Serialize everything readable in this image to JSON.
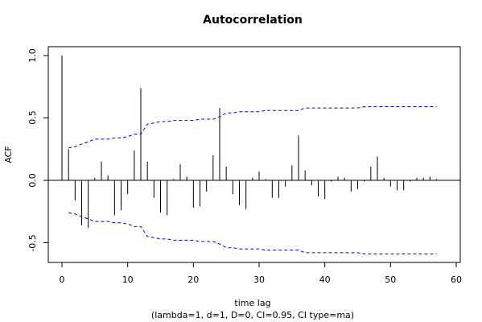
{
  "chart_data": {
    "type": "bar",
    "title": "Autocorrelation",
    "xlabel": "time lag",
    "subtitle": "(lambda=1, d=1, D=0, CI=0.95, CI type=ma)",
    "ylabel": "ACF",
    "xlim": [
      0,
      60
    ],
    "ylim": [
      -0.6,
      1.0
    ],
    "x_ticks": [
      0,
      10,
      20,
      30,
      40,
      50,
      60
    ],
    "y_ticks": [
      -0.5,
      0.0,
      0.5,
      1.0
    ],
    "x_tick_labels": [
      "0",
      "10",
      "20",
      "30",
      "40",
      "50",
      "60"
    ],
    "y_tick_labels": [
      "-0.5",
      "0.0",
      "0.5",
      "1.0"
    ],
    "zero_line": true,
    "lags": [
      0,
      1,
      2,
      3,
      4,
      5,
      6,
      7,
      8,
      9,
      10,
      11,
      12,
      13,
      14,
      15,
      16,
      17,
      18,
      19,
      20,
      21,
      22,
      23,
      24,
      25,
      26,
      27,
      28,
      29,
      30,
      31,
      32,
      33,
      34,
      35,
      36,
      37,
      38,
      39,
      40,
      41,
      42,
      43,
      44,
      45,
      46,
      47,
      48,
      49,
      50,
      51,
      52,
      53,
      54,
      55,
      56,
      57
    ],
    "acf": [
      1.0,
      0.25,
      -0.16,
      -0.36,
      -0.38,
      0.02,
      0.15,
      0.04,
      -0.28,
      -0.24,
      -0.11,
      0.24,
      0.74,
      0.15,
      -0.14,
      -0.26,
      -0.28,
      0.01,
      0.13,
      0.03,
      -0.22,
      -0.21,
      -0.09,
      0.2,
      0.58,
      0.11,
      -0.11,
      -0.2,
      -0.23,
      0.02,
      0.07,
      0.01,
      -0.14,
      -0.14,
      -0.05,
      0.12,
      0.36,
      0.08,
      -0.04,
      -0.13,
      -0.15,
      -0.01,
      0.03,
      0.02,
      -0.09,
      -0.07,
      -0.01,
      0.11,
      0.19,
      0.02,
      -0.05,
      -0.08,
      -0.08,
      -0.01,
      0.02,
      0.02,
      0.03,
      0.01
    ],
    "ci_upper": [
      null,
      0.26,
      0.27,
      0.29,
      0.31,
      0.33,
      0.33,
      0.33,
      0.34,
      0.34,
      0.35,
      0.37,
      0.37,
      0.45,
      0.46,
      0.47,
      0.47,
      0.48,
      0.48,
      0.48,
      0.48,
      0.49,
      0.49,
      0.49,
      0.51,
      0.54,
      0.54,
      0.55,
      0.55,
      0.55,
      0.55,
      0.56,
      0.56,
      0.56,
      0.56,
      0.56,
      0.56,
      0.58,
      0.58,
      0.58,
      0.58,
      0.58,
      0.58,
      0.58,
      0.58,
      0.58,
      0.59,
      0.59,
      0.59,
      0.59,
      0.59,
      0.59,
      0.59,
      0.59,
      0.59,
      0.59,
      0.59,
      0.59
    ],
    "ci_lower": [
      null,
      -0.26,
      -0.27,
      -0.29,
      -0.31,
      -0.33,
      -0.33,
      -0.33,
      -0.34,
      -0.34,
      -0.35,
      -0.37,
      -0.37,
      -0.45,
      -0.46,
      -0.47,
      -0.47,
      -0.48,
      -0.48,
      -0.48,
      -0.48,
      -0.49,
      -0.49,
      -0.49,
      -0.51,
      -0.54,
      -0.54,
      -0.55,
      -0.55,
      -0.55,
      -0.55,
      -0.56,
      -0.56,
      -0.56,
      -0.56,
      -0.56,
      -0.56,
      -0.58,
      -0.58,
      -0.58,
      -0.58,
      -0.58,
      -0.58,
      -0.58,
      -0.58,
      -0.58,
      -0.59,
      -0.59,
      -0.59,
      -0.59,
      -0.59,
      -0.59,
      -0.59,
      -0.59,
      -0.59,
      -0.59,
      -0.59,
      -0.59
    ],
    "colors": {
      "bars": "#000000",
      "ci": "#0000ff",
      "axis": "#000000",
      "background": "#ffffff"
    },
    "ci_line_style": "dashed",
    "grid": false,
    "legend": "none"
  }
}
